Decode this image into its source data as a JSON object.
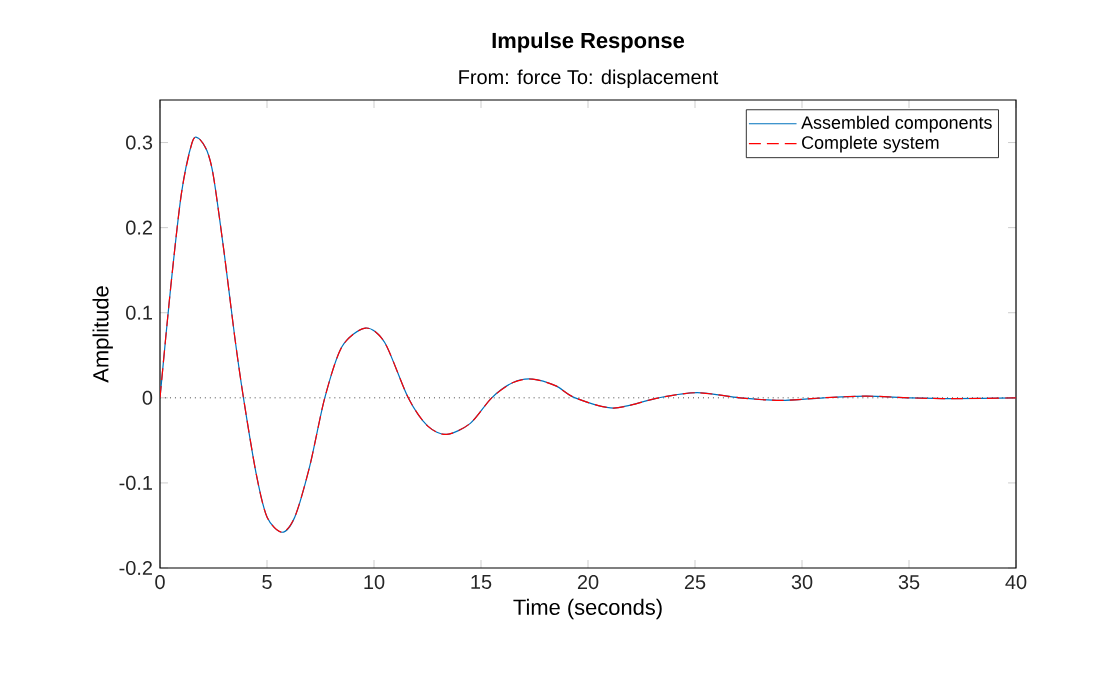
{
  "chart_data": {
    "type": "line",
    "title": "Impulse Response",
    "subtitle": "From: force  To: displacement",
    "xlabel": "Time (seconds)",
    "ylabel": "Amplitude",
    "x": [
      0,
      0.5,
      1.0,
      1.5,
      1.8,
      2.2,
      2.5,
      3.0,
      3.5,
      3.9,
      4.5,
      5.0,
      5.7,
      6.3,
      7.0,
      7.7,
      8.5,
      9.6,
      10.5,
      11.6,
      12.5,
      13.4,
      14.5,
      15.5,
      16.5,
      17.4,
      18.5,
      19.4,
      21.2,
      23.3,
      25.1,
      27.1,
      29.0,
      31.0,
      33.0,
      35.0,
      37.0,
      40.0
    ],
    "series": [
      {
        "name": "Assembled components",
        "color": "#0072bd",
        "line_style": "solid",
        "values": [
          0,
          0.13,
          0.24,
          0.3,
          0.305,
          0.29,
          0.26,
          0.17,
          0.07,
          0.0,
          -0.09,
          -0.14,
          -0.158,
          -0.14,
          -0.08,
          0.0,
          0.06,
          0.082,
          0.065,
          0.0,
          -0.033,
          -0.043,
          -0.03,
          0.0,
          0.018,
          0.022,
          0.014,
          0.0,
          -0.012,
          0.0,
          0.006,
          0.0,
          -0.003,
          0.0,
          0.002,
          0.0,
          -0.001,
          0.0
        ]
      },
      {
        "name": "Complete system",
        "color": "#ff0000",
        "line_style": "dashed",
        "values": [
          0,
          0.13,
          0.24,
          0.3,
          0.305,
          0.29,
          0.26,
          0.17,
          0.07,
          0.0,
          -0.09,
          -0.14,
          -0.158,
          -0.14,
          -0.08,
          0.0,
          0.06,
          0.082,
          0.065,
          0.0,
          -0.033,
          -0.043,
          -0.03,
          0.0,
          0.018,
          0.022,
          0.014,
          0.0,
          -0.012,
          0.0,
          0.006,
          0.0,
          -0.003,
          0.0,
          0.002,
          0.0,
          -0.001,
          0.0
        ]
      }
    ],
    "xlim": [
      0,
      40
    ],
    "xticks": [
      0,
      5,
      10,
      15,
      20,
      25,
      30,
      35,
      40
    ],
    "ylim": [
      -0.2,
      0.35
    ],
    "yticks": [
      -0.2,
      -0.1,
      0,
      0.1,
      0.2,
      0.3
    ],
    "ref_lines": [
      {
        "axis": "y",
        "value": 0,
        "color": "#444444",
        "line_style": "dotted"
      }
    ],
    "legend": "top right",
    "grid": false
  }
}
